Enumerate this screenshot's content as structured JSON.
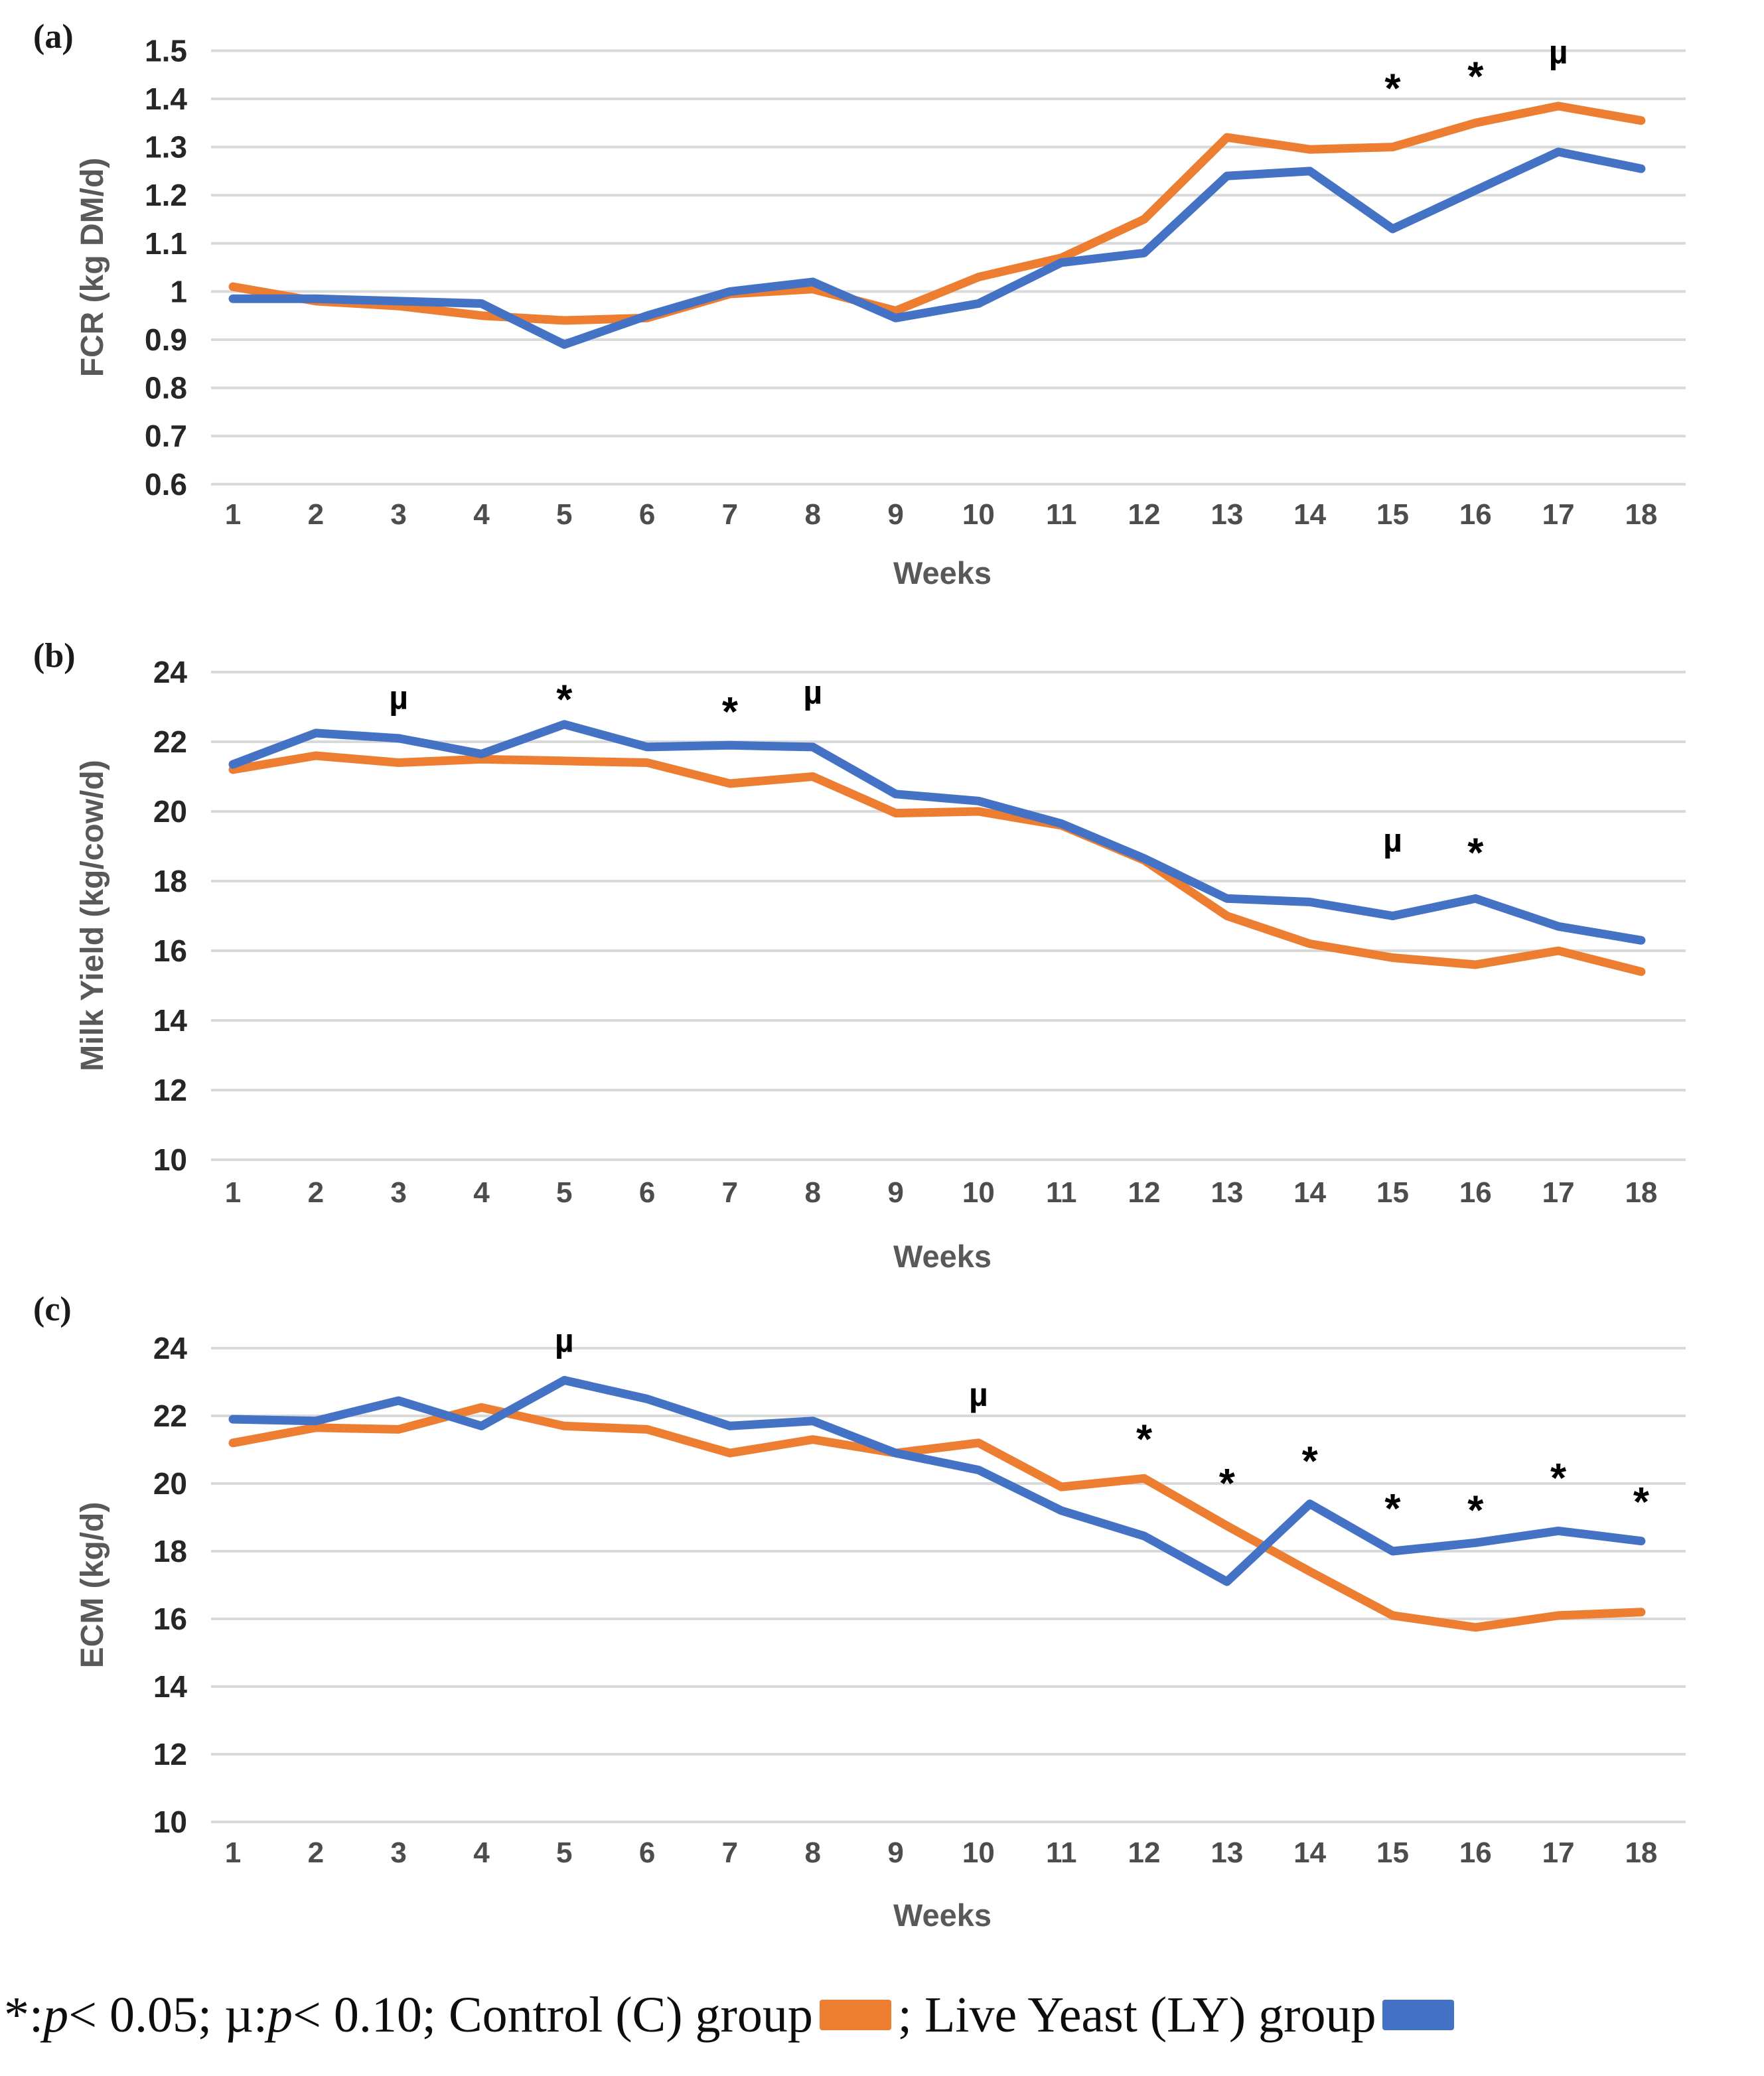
{
  "figure": {
    "xlabel": "Weeks",
    "weeks": [
      1,
      2,
      3,
      4,
      5,
      6,
      7,
      8,
      9,
      10,
      11,
      12,
      13,
      14,
      15,
      16,
      17,
      18
    ]
  },
  "colors": {
    "control": "#ED7D31",
    "live_yeast": "#4472C4",
    "gridline": "#D9D9D9",
    "tick_text": "#262626",
    "axis_title_text": "#595959",
    "annotation_text": "#000000"
  },
  "chart_data": [
    {
      "type": "line",
      "panel_label": "(a)",
      "ylabel": "FCR (kg DM/d)",
      "xlabel": "Weeks",
      "categories": [
        1,
        2,
        3,
        4,
        5,
        6,
        7,
        8,
        9,
        10,
        11,
        12,
        13,
        14,
        15,
        16,
        17,
        18
      ],
      "ytick_labels": [
        "1.5",
        "1.4",
        "1.3",
        "1.2",
        "1.1",
        "1",
        "0.9",
        "0.8",
        "0.7",
        "0.6"
      ],
      "ylim": [
        0.6,
        1.5
      ],
      "grid": true,
      "series": [
        {
          "name": "Control (C) group",
          "color_key": "control",
          "values": [
            1.01,
            0.98,
            0.97,
            0.95,
            0.94,
            0.945,
            0.995,
            1.005,
            0.96,
            1.03,
            1.07,
            1.15,
            1.32,
            1.295,
            1.3,
            1.35,
            1.385,
            1.355
          ]
        },
        {
          "name": "Live Yeast (LY) group",
          "color_key": "live_yeast",
          "values": [
            0.985,
            0.985,
            0.98,
            0.975,
            0.89,
            0.95,
            1.0,
            1.02,
            0.945,
            0.975,
            1.06,
            1.08,
            1.24,
            1.25,
            1.13,
            1.21,
            1.29,
            1.255
          ]
        }
      ],
      "annotations": [
        {
          "week": 15,
          "symbol": "*",
          "value": 1.435
        },
        {
          "week": 16,
          "symbol": "*",
          "value": 1.46
        },
        {
          "week": 17,
          "symbol": "µ",
          "value": 1.485
        }
      ]
    },
    {
      "type": "line",
      "panel_label": "(b)",
      "ylabel": "Milk Yield (kg/cow/d)",
      "xlabel": "Weeks",
      "categories": [
        1,
        2,
        3,
        4,
        5,
        6,
        7,
        8,
        9,
        10,
        11,
        12,
        13,
        14,
        15,
        16,
        17,
        18
      ],
      "ytick_labels": [
        "24",
        "22",
        "20",
        "18",
        "16",
        "14",
        "12",
        "10"
      ],
      "ylim": [
        10,
        24
      ],
      "grid": true,
      "series": [
        {
          "name": "Control (C) group",
          "color_key": "control",
          "values": [
            21.2,
            21.6,
            21.4,
            21.5,
            21.45,
            21.4,
            20.8,
            21.0,
            19.95,
            20.0,
            19.6,
            18.6,
            17.0,
            16.2,
            15.8,
            15.6,
            16.0,
            15.4
          ]
        },
        {
          "name": "Live Yeast (LY) group",
          "color_key": "live_yeast",
          "values": [
            21.35,
            22.25,
            22.1,
            21.65,
            22.5,
            21.85,
            21.9,
            21.85,
            20.5,
            20.3,
            19.65,
            18.65,
            17.5,
            17.4,
            17.0,
            17.5,
            16.7,
            16.3
          ]
        }
      ],
      "annotations": [
        {
          "week": 3,
          "symbol": "µ",
          "value": 23.1
        },
        {
          "week": 5,
          "symbol": "*",
          "value": 23.4
        },
        {
          "week": 7,
          "symbol": "*",
          "value": 23.05
        },
        {
          "week": 8,
          "symbol": "µ",
          "value": 23.25
        },
        {
          "week": 15,
          "symbol": "µ",
          "value": 19.0
        },
        {
          "week": 16,
          "symbol": "*",
          "value": 19.0
        }
      ]
    },
    {
      "type": "line",
      "panel_label": "(c)",
      "ylabel": "ECM (kg/d)",
      "xlabel": "Weeks",
      "categories": [
        1,
        2,
        3,
        4,
        5,
        6,
        7,
        8,
        9,
        10,
        11,
        12,
        13,
        14,
        15,
        16,
        17,
        18
      ],
      "ytick_labels": [
        "24",
        "22",
        "20",
        "18",
        "16",
        "14",
        "12",
        "10"
      ],
      "ylim": [
        10,
        24
      ],
      "grid": true,
      "series": [
        {
          "name": "Control (C) group",
          "color_key": "control",
          "values": [
            21.2,
            21.65,
            21.6,
            22.25,
            21.7,
            21.6,
            20.9,
            21.3,
            20.9,
            21.2,
            19.9,
            20.15,
            18.75,
            17.4,
            16.1,
            15.75,
            16.1,
            16.2
          ]
        },
        {
          "name": "Live Yeast (LY) group",
          "color_key": "live_yeast",
          "values": [
            21.9,
            21.85,
            22.45,
            21.7,
            23.05,
            22.5,
            21.7,
            21.85,
            20.9,
            20.4,
            19.2,
            18.45,
            17.1,
            19.4,
            18.0,
            18.25,
            18.6,
            18.3
          ]
        }
      ],
      "annotations": [
        {
          "week": 5,
          "symbol": "µ",
          "value": 24.05
        },
        {
          "week": 10,
          "symbol": "µ",
          "value": 22.45
        },
        {
          "week": 12,
          "symbol": "*",
          "value": 21.5
        },
        {
          "week": 13,
          "symbol": "*",
          "value": 20.2
        },
        {
          "week": 14,
          "symbol": "*",
          "value": 20.85
        },
        {
          "week": 15,
          "symbol": "*",
          "value": 19.45
        },
        {
          "week": 16,
          "symbol": "*",
          "value": 19.4
        },
        {
          "week": 17,
          "symbol": "*",
          "value": 20.35
        },
        {
          "week": 18,
          "symbol": "*",
          "value": 19.65
        }
      ]
    }
  ],
  "legend": {
    "parts": [
      {
        "text": "*: "
      },
      {
        "text": "p",
        "italic": true
      },
      {
        "text": " < 0.05; µ: "
      },
      {
        "text": "p",
        "italic": true
      },
      {
        "text": " < 0.10; Control (C) group "
      },
      {
        "swatch": "control",
        "name": "control-line-swatch"
      },
      {
        "text": " ; Live Yeast (LY) group "
      },
      {
        "swatch": "live_yeast",
        "name": "live-yeast-line-swatch"
      }
    ]
  }
}
